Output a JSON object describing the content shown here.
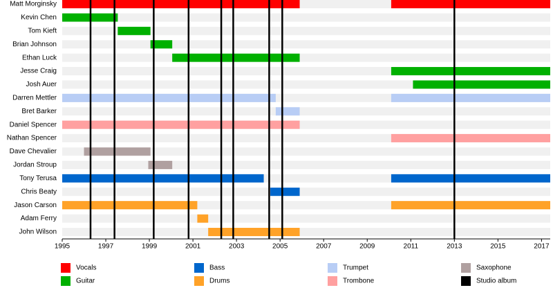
{
  "chart_data": {
    "type": "timeline",
    "categories": [
      "Matt Morginsky",
      "Kevin Chen",
      "Tom Kieft",
      "Brian Johnson",
      "Ethan Luck",
      "Jesse Craig",
      "Josh Auer",
      "Darren Mettler",
      "Bret Barker",
      "Daniel Spencer",
      "Nathan Spencer",
      "Dave Chevalier",
      "Jordan Stroup",
      "Tony Terusa",
      "Chris Beaty",
      "Jason Carson",
      "Adam Ferry",
      "John Wilson"
    ],
    "xlim": [
      1995,
      2017.4
    ],
    "xticks": [
      1995,
      1997,
      1999,
      2001,
      2003,
      2005,
      2007,
      2009,
      2011,
      2013,
      2015,
      2017
    ],
    "series": [
      {
        "name": "Vocals",
        "color": "#ff0000",
        "values": [
          [
            [
              1995,
              2005.9
            ],
            [
              2010.1,
              2017.4
            ]
          ],
          null,
          null,
          null,
          null,
          null,
          null,
          null,
          null,
          null,
          null,
          null,
          null,
          null,
          null,
          null,
          null,
          null
        ]
      },
      {
        "name": "Guitar",
        "color": "#00b000",
        "values": [
          null,
          [
            [
              1995,
              1997.55
            ]
          ],
          [
            [
              1997.55,
              1999.05
            ]
          ],
          [
            [
              1999.05,
              2000.05
            ]
          ],
          [
            [
              2000.05,
              2005.9
            ]
          ],
          [
            [
              2010.1,
              2017.4
            ]
          ],
          [
            [
              2011.1,
              2017.4
            ]
          ],
          null,
          null,
          null,
          null,
          null,
          null,
          null,
          null,
          null,
          null,
          null
        ]
      },
      {
        "name": "Bass",
        "color": "#0066cc",
        "values": [
          null,
          null,
          null,
          null,
          null,
          null,
          null,
          null,
          null,
          null,
          null,
          null,
          null,
          [
            [
              1995,
              2004.25
            ],
            [
              2010.1,
              2017.4
            ]
          ],
          [
            [
              2004.55,
              2005.9
            ]
          ],
          null,
          null,
          null
        ]
      },
      {
        "name": "Drums",
        "color": "#ffa228",
        "values": [
          null,
          null,
          null,
          null,
          null,
          null,
          null,
          null,
          null,
          null,
          null,
          null,
          null,
          null,
          null,
          [
            [
              1995,
              2001.2
            ],
            [
              2010.1,
              2017.4
            ]
          ],
          [
            [
              2001.2,
              2001.7
            ]
          ],
          [
            [
              2001.7,
              2005.9
            ]
          ]
        ]
      },
      {
        "name": "Trumpet",
        "color": "#b8cdf5",
        "values": [
          null,
          null,
          null,
          null,
          null,
          null,
          null,
          [
            [
              1995,
              2004.8
            ],
            [
              2010.1,
              2017.4
            ]
          ],
          [
            [
              2004.8,
              2005.9
            ]
          ],
          null,
          null,
          null,
          null,
          null,
          null,
          null,
          null,
          null
        ]
      },
      {
        "name": "Trombone",
        "color": "#ffa0a0",
        "values": [
          null,
          null,
          null,
          null,
          null,
          null,
          null,
          null,
          null,
          [
            [
              1995,
              2005.9
            ]
          ],
          [
            [
              2010.1,
              2017.4
            ]
          ],
          null,
          null,
          null,
          null,
          null,
          null,
          null
        ]
      },
      {
        "name": "Saxophone",
        "color": "#b0a0a0",
        "values": [
          null,
          null,
          null,
          null,
          null,
          null,
          null,
          null,
          null,
          null,
          null,
          [
            [
              1996,
              1999.05
            ]
          ],
          [
            [
              1998.95,
              2000.05
            ]
          ],
          null,
          null,
          null,
          null,
          null
        ]
      }
    ],
    "albums": {
      "name": "Studio album",
      "color": "#000000",
      "x": [
        1996.3,
        1997.4,
        1999.2,
        2000.8,
        2002.3,
        2002.85,
        2004.5,
        2005.1,
        2013
      ]
    }
  }
}
